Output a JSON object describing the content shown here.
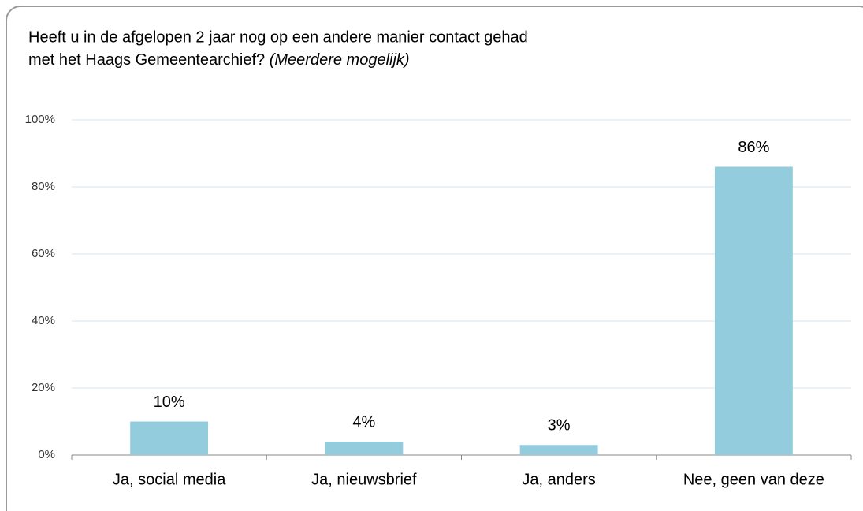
{
  "chart_data": {
    "type": "bar",
    "title": [
      "Heeft u in de afgelopen 2 jaar nog op een andere manier contact gehad",
      "met het Haags Gemeentearchief?"
    ],
    "title_note": "(Meerdere mogelijk)",
    "categories": [
      "Ja, social media",
      "Ja, nieuwsbrief",
      "Ja, anders",
      "Nee, geen van deze"
    ],
    "values": [
      10,
      4,
      3,
      86
    ],
    "value_labels": [
      "10%",
      "4%",
      "3%",
      "86%"
    ],
    "color": "#93cddd",
    "ylim": [
      0,
      100
    ],
    "yticks": [
      {
        "value": 0,
        "label": "0%"
      },
      {
        "value": 20,
        "label": "20%"
      },
      {
        "value": 40,
        "label": "40%"
      },
      {
        "value": 60,
        "label": "60%"
      },
      {
        "value": 80,
        "label": "80%"
      },
      {
        "value": 100,
        "label": "100%"
      }
    ],
    "grid": true
  }
}
